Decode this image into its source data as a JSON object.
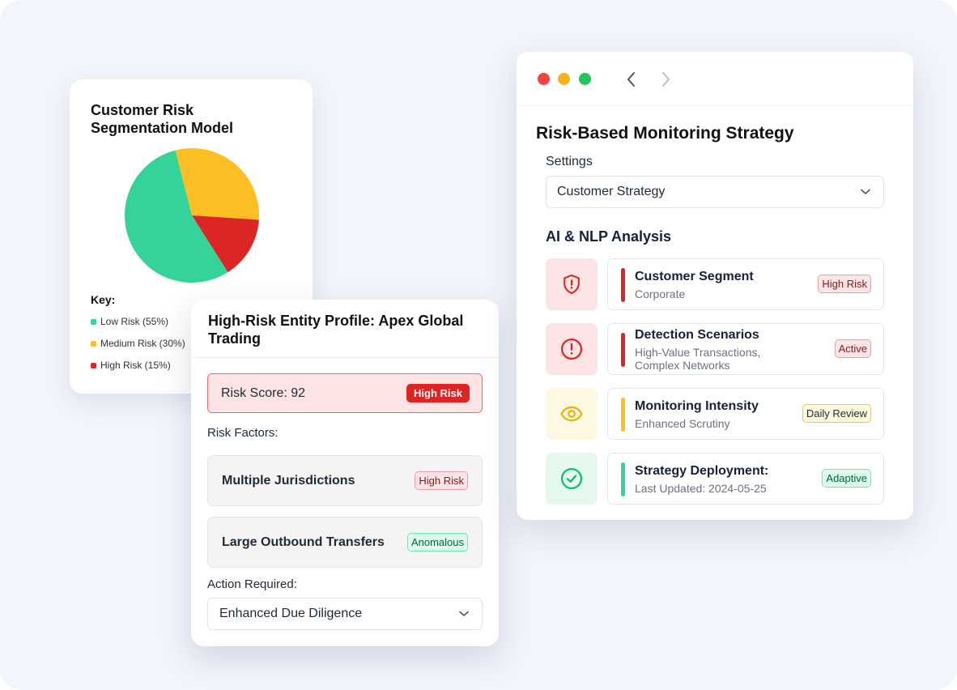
{
  "pie_card": {
    "title": "Customer Risk Segmentation Model",
    "key_title": "Key:",
    "legend": [
      {
        "label": "Low Risk (55%)",
        "color": "#34d399"
      },
      {
        "label": "Medium Risk (30%)",
        "color": "#fbbf24"
      },
      {
        "label": "High Risk (15%)",
        "color": "#dc2626"
      }
    ]
  },
  "chart_data": {
    "type": "pie",
    "title": "Customer Risk Segmentation Model",
    "slices": [
      {
        "label": "Low Risk",
        "value": 55,
        "color": "#34d399"
      },
      {
        "label": "Medium Risk",
        "value": 30,
        "color": "#fbbf24"
      },
      {
        "label": "High Risk",
        "value": 15,
        "color": "#dc2626"
      }
    ],
    "legend_position": "bottom-left"
  },
  "entity_card": {
    "title": "High-Risk Entity Profile: Apex Global Trading",
    "risk_score_label": "Risk Score: 92",
    "risk_score_badge": "High Risk",
    "risk_factors_label": "Risk Factors:",
    "factors": [
      {
        "label": "Multiple Jurisdictions",
        "badge": "High Risk"
      },
      {
        "label": "Large Outbound Transfers",
        "badge": "Anomalous"
      }
    ],
    "action_label": "Action Required:",
    "action_value": "Enhanced Due Diligence"
  },
  "strategy_window": {
    "title": "Risk-Based Monitoring Strategy",
    "settings_label": "Settings",
    "settings_value": "Customer Strategy",
    "section_title": "AI & NLP Analysis",
    "rows": [
      {
        "icon": "shield-alert-icon",
        "title": "Customer Segment",
        "subtitle": "Corporate",
        "badge": "High Risk"
      },
      {
        "icon": "alert-circle-icon",
        "title": "Detection Scenarios",
        "subtitle": "High-Value Transactions,",
        "subtitle2": "Complex Networks",
        "badge": "Active"
      },
      {
        "icon": "eye-icon",
        "title": "Monitoring Intensity",
        "subtitle": "Enhanced Scrutiny",
        "badge": "Daily Review"
      },
      {
        "icon": "check-circle-icon",
        "title": "Strategy Deployment:",
        "subtitle": "Last Updated: 2024-05-25",
        "badge": "Adaptive"
      }
    ]
  }
}
